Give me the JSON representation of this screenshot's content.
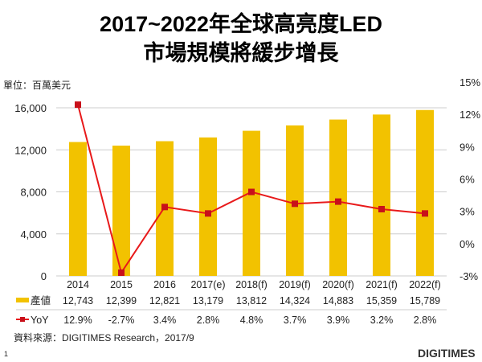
{
  "title_line1": "2017~2022年全球高亮度LED",
  "title_line2": "市場規模將緩步增長",
  "unit": "單位：百萬美元",
  "source": "資料來源：DIGITIMES Research，2017/9",
  "page_number": "1",
  "logo": "DIGITIMES",
  "colors": {
    "bar": "#F2C200",
    "line": "#E8191A"
  },
  "chart_data": {
    "type": "bar+line",
    "categories": [
      "2014",
      "2015",
      "2016",
      "2017(e)",
      "2018(f)",
      "2019(f)",
      "2020(f)",
      "2021(f)",
      "2022(f)"
    ],
    "series": [
      {
        "name": "產値",
        "axis": "left",
        "values": [
          12743,
          12399,
          12821,
          13179,
          13812,
          14324,
          14883,
          15359,
          15789
        ],
        "labels": [
          "12,743",
          "12,399",
          "12,821",
          "13,179",
          "13,812",
          "14,324",
          "14,883",
          "15,359",
          "15,789"
        ]
      },
      {
        "name": "YoY",
        "axis": "right",
        "values": [
          12.9,
          -2.7,
          3.4,
          2.8,
          4.8,
          3.7,
          3.9,
          3.2,
          2.8
        ],
        "labels": [
          "12.9%",
          "-2.7%",
          "3.4%",
          "2.8%",
          "4.8%",
          "3.7%",
          "3.9%",
          "3.2%",
          "2.8%"
        ]
      }
    ],
    "ylim_left": [
      0,
      16000
    ],
    "yticks_left": [
      "0",
      "4,000",
      "8,000",
      "12,000",
      "16,000"
    ],
    "ylim_right": [
      -3,
      15
    ],
    "yticks_right": [
      "-3%",
      "0%",
      "3%",
      "6%",
      "9%",
      "12%",
      "15%"
    ]
  }
}
